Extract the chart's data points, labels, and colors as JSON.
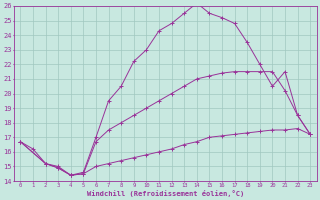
{
  "xlabel": "Windchill (Refroidissement éolien,°C)",
  "xlim": [
    -0.5,
    23.5
  ],
  "ylim": [
    14,
    26
  ],
  "xticks": [
    0,
    1,
    2,
    3,
    4,
    5,
    6,
    7,
    8,
    9,
    10,
    11,
    12,
    13,
    14,
    15,
    16,
    17,
    18,
    19,
    20,
    21,
    22,
    23
  ],
  "yticks": [
    14,
    15,
    16,
    17,
    18,
    19,
    20,
    21,
    22,
    23,
    24,
    25,
    26
  ],
  "bg_color": "#c8e8e0",
  "line_color": "#993399",
  "grid_color": "#a0c8c0",
  "lines": [
    {
      "x": [
        0,
        1,
        2,
        3,
        4,
        5,
        6,
        7,
        8,
        9,
        10,
        11,
        12,
        13,
        14,
        15,
        16,
        17,
        18,
        19,
        20,
        21,
        22,
        23
      ],
      "y": [
        16.7,
        16.2,
        15.2,
        14.9,
        14.4,
        14.6,
        17.0,
        19.5,
        20.5,
        22.2,
        23.0,
        24.3,
        24.8,
        25.5,
        26.2,
        25.5,
        25.2,
        24.8,
        23.5,
        22.0,
        20.5,
        21.5,
        18.5,
        17.2
      ]
    },
    {
      "x": [
        0,
        2,
        3,
        4,
        5,
        6,
        7,
        8,
        9,
        10,
        11,
        12,
        13,
        14,
        15,
        16,
        17,
        18,
        19,
        20,
        21,
        22,
        23
      ],
      "y": [
        16.7,
        15.2,
        14.9,
        14.4,
        14.5,
        15.0,
        15.2,
        15.4,
        15.6,
        15.8,
        16.0,
        16.2,
        16.5,
        16.7,
        17.0,
        17.1,
        17.2,
        17.3,
        17.4,
        17.5,
        17.5,
        17.6,
        17.2
      ]
    },
    {
      "x": [
        0,
        2,
        3,
        4,
        5,
        6,
        7,
        8,
        9,
        10,
        11,
        12,
        13,
        14,
        15,
        16,
        17,
        18,
        19,
        20,
        21,
        22,
        23
      ],
      "y": [
        16.7,
        15.2,
        15.0,
        14.4,
        14.5,
        16.7,
        17.5,
        18.0,
        18.5,
        19.0,
        19.5,
        20.0,
        20.5,
        21.0,
        21.2,
        21.4,
        21.5,
        21.5,
        21.5,
        21.5,
        20.2,
        18.5,
        17.2
      ]
    }
  ]
}
